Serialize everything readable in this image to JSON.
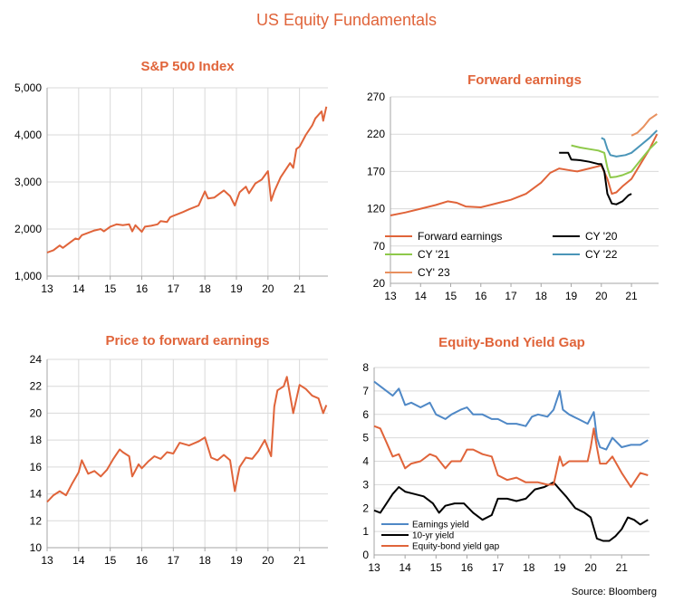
{
  "page_title": "US Equity Fundamentals",
  "source": "Source: Bloomberg",
  "colors": {
    "orange": "#e0643a",
    "black": "#000000",
    "green": "#8ec94a",
    "blue": "#4a95b8",
    "lightorange": "#e8905e",
    "steelblue": "#4f88c6"
  },
  "chart_data": [
    {
      "id": "sp500",
      "type": "line",
      "title": "S&P 500 Index",
      "x_ticks": [
        "13",
        "14",
        "15",
        "16",
        "17",
        "18",
        "19",
        "20",
        "21"
      ],
      "y_ticks": [
        "1,000",
        "2,000",
        "3,000",
        "4,000",
        "5,000"
      ],
      "xlim": [
        2013.0,
        2021.9
      ],
      "ylim": [
        1000,
        5000
      ],
      "series": [
        {
          "color": "#e0643a",
          "x": [
            2013.0,
            2013.2,
            2013.4,
            2013.5,
            2013.7,
            2013.9,
            2014.0,
            2014.1,
            2014.3,
            2014.5,
            2014.7,
            2014.8,
            2015.0,
            2015.2,
            2015.4,
            2015.6,
            2015.7,
            2015.8,
            2016.0,
            2016.1,
            2016.3,
            2016.5,
            2016.6,
            2016.8,
            2016.9,
            2017.0,
            2017.3,
            2017.5,
            2017.8,
            2018.0,
            2018.1,
            2018.3,
            2018.6,
            2018.8,
            2018.95,
            2019.1,
            2019.3,
            2019.4,
            2019.6,
            2019.8,
            2020.0,
            2020.1,
            2020.2,
            2020.4,
            2020.6,
            2020.7,
            2020.8,
            2020.9,
            2021.0,
            2021.2,
            2021.4,
            2021.5,
            2021.7,
            2021.75,
            2021.85
          ],
          "y": [
            1500,
            1550,
            1650,
            1600,
            1700,
            1800,
            1780,
            1870,
            1920,
            1970,
            2000,
            1950,
            2050,
            2100,
            2080,
            2100,
            1950,
            2080,
            1940,
            2050,
            2070,
            2100,
            2170,
            2150,
            2250,
            2280,
            2360,
            2420,
            2500,
            2800,
            2650,
            2670,
            2820,
            2700,
            2500,
            2780,
            2900,
            2760,
            2970,
            3050,
            3230,
            2600,
            2800,
            3100,
            3300,
            3400,
            3300,
            3700,
            3750,
            4000,
            4200,
            4350,
            4500,
            4300,
            4600
          ]
        }
      ]
    },
    {
      "id": "fwd",
      "type": "line",
      "title": "Forward earnings",
      "x_ticks": [
        "13",
        "14",
        "15",
        "16",
        "17",
        "18",
        "19",
        "20",
        "21"
      ],
      "y_ticks": [
        "20",
        "70",
        "120",
        "170",
        "220",
        "270"
      ],
      "xlim": [
        2013.0,
        2021.9
      ],
      "ylim": [
        20,
        270
      ],
      "legend": [
        "Forward earnings",
        "CY '20",
        "CY '21",
        "CY '22",
        "CY' 23"
      ],
      "series": [
        {
          "name": "Forward earnings",
          "color": "#e0643a",
          "x": [
            2013.0,
            2013.5,
            2014.0,
            2014.5,
            2014.9,
            2015.2,
            2015.5,
            2016.0,
            2016.3,
            2016.6,
            2017.0,
            2017.5,
            2018.0,
            2018.3,
            2018.6,
            2018.9,
            2019.2,
            2019.6,
            2020.0,
            2020.2,
            2020.35,
            2020.5,
            2020.7,
            2021.0,
            2021.3,
            2021.6,
            2021.85
          ],
          "y": [
            111,
            115,
            120,
            125,
            130,
            128,
            123,
            122,
            125,
            128,
            132,
            140,
            155,
            168,
            174,
            172,
            170,
            174,
            178,
            160,
            140,
            142,
            150,
            160,
            180,
            200,
            220
          ]
        },
        {
          "name": "CY '20",
          "color": "#000000",
          "x": [
            2018.6,
            2018.9,
            2019.0,
            2019.3,
            2019.6,
            2019.9,
            2020.0,
            2020.1,
            2020.2,
            2020.35,
            2020.5,
            2020.7,
            2020.9,
            2021.0
          ],
          "y": [
            195,
            195,
            186,
            185,
            183,
            180,
            180,
            170,
            140,
            127,
            126,
            130,
            138,
            140
          ]
        },
        {
          "name": "CY '21",
          "color": "#8ec94a",
          "x": [
            2019.0,
            2019.3,
            2019.6,
            2019.9,
            2020.1,
            2020.2,
            2020.3,
            2020.5,
            2020.7,
            2021.0,
            2021.3,
            2021.6,
            2021.85
          ],
          "y": [
            205,
            202,
            200,
            198,
            195,
            175,
            162,
            163,
            165,
            170,
            185,
            200,
            210
          ]
        },
        {
          "name": "CY '22",
          "color": "#4a95b8",
          "x": [
            2020.0,
            2020.1,
            2020.2,
            2020.3,
            2020.5,
            2020.8,
            2021.0,
            2021.3,
            2021.6,
            2021.85
          ],
          "y": [
            215,
            213,
            200,
            192,
            190,
            192,
            195,
            205,
            215,
            225
          ]
        },
        {
          "name": "CY' 23",
          "color": "#e8905e",
          "x": [
            2021.0,
            2021.2,
            2021.4,
            2021.6,
            2021.85
          ],
          "y": [
            218,
            222,
            230,
            240,
            247
          ]
        }
      ]
    },
    {
      "id": "pe",
      "type": "line",
      "title": "Price to forward earnings",
      "x_ticks": [
        "13",
        "14",
        "15",
        "16",
        "17",
        "18",
        "19",
        "20",
        "21"
      ],
      "y_ticks": [
        "10",
        "12",
        "14",
        "16",
        "18",
        "20",
        "22",
        "24"
      ],
      "xlim": [
        2013.0,
        2021.9
      ],
      "ylim": [
        10,
        24
      ],
      "series": [
        {
          "color": "#e0643a",
          "x": [
            2013.0,
            2013.2,
            2013.4,
            2013.6,
            2013.8,
            2014.0,
            2014.1,
            2014.3,
            2014.5,
            2014.7,
            2014.9,
            2015.1,
            2015.3,
            2015.4,
            2015.6,
            2015.7,
            2015.9,
            2016.0,
            2016.2,
            2016.4,
            2016.6,
            2016.8,
            2017.0,
            2017.2,
            2017.5,
            2017.8,
            2018.0,
            2018.2,
            2018.4,
            2018.6,
            2018.8,
            2018.95,
            2019.1,
            2019.3,
            2019.5,
            2019.7,
            2019.9,
            2020.1,
            2020.2,
            2020.3,
            2020.5,
            2020.6,
            2020.8,
            2021.0,
            2021.2,
            2021.4,
            2021.6,
            2021.75,
            2021.85
          ],
          "y": [
            13.4,
            13.9,
            14.2,
            13.9,
            14.8,
            15.6,
            16.5,
            15.5,
            15.7,
            15.3,
            15.8,
            16.6,
            17.3,
            17.1,
            16.8,
            15.3,
            16.2,
            15.9,
            16.4,
            16.8,
            16.6,
            17.1,
            17.0,
            17.8,
            17.6,
            17.9,
            18.2,
            16.7,
            16.5,
            16.9,
            16.5,
            14.2,
            16.0,
            16.7,
            16.6,
            17.2,
            18.0,
            16.8,
            20.5,
            21.7,
            22.0,
            22.7,
            20.0,
            22.1,
            21.8,
            21.3,
            21.1,
            20.0,
            20.6
          ]
        }
      ]
    },
    {
      "id": "gap",
      "type": "line",
      "title": "Equity-Bond Yield Gap",
      "x_ticks": [
        "13",
        "14",
        "15",
        "16",
        "17",
        "18",
        "19",
        "20",
        "21"
      ],
      "y_ticks": [
        "0",
        "1",
        "2",
        "3",
        "4",
        "5",
        "6",
        "7",
        "8"
      ],
      "xlim": [
        2013.0,
        2021.9
      ],
      "ylim": [
        0,
        8
      ],
      "legend": [
        "Earnings yield",
        "10-yr yield",
        "Equity-bond yield gap"
      ],
      "series": [
        {
          "name": "Earnings yield",
          "color": "#4f88c6",
          "x": [
            2013.0,
            2013.2,
            2013.4,
            2013.6,
            2013.8,
            2014.0,
            2014.2,
            2014.5,
            2014.8,
            2015.0,
            2015.3,
            2015.5,
            2015.8,
            2016.0,
            2016.2,
            2016.5,
            2016.8,
            2017.0,
            2017.3,
            2017.6,
            2017.9,
            2018.1,
            2018.3,
            2018.6,
            2018.8,
            2019.0,
            2019.1,
            2019.3,
            2019.6,
            2019.9,
            2020.1,
            2020.2,
            2020.3,
            2020.5,
            2020.7,
            2021.0,
            2021.3,
            2021.6,
            2021.85
          ],
          "y": [
            7.4,
            7.2,
            7.0,
            6.8,
            7.1,
            6.4,
            6.5,
            6.3,
            6.5,
            6.0,
            5.8,
            6.0,
            6.2,
            6.3,
            6.0,
            6.0,
            5.8,
            5.8,
            5.6,
            5.6,
            5.5,
            5.9,
            6.0,
            5.9,
            6.2,
            7.0,
            6.2,
            6.0,
            5.8,
            5.6,
            6.1,
            5.0,
            4.6,
            4.5,
            5.0,
            4.6,
            4.7,
            4.7,
            4.9
          ]
        },
        {
          "name": "10-yr yield",
          "color": "#000000",
          "x": [
            2013.0,
            2013.2,
            2013.4,
            2013.6,
            2013.8,
            2014.0,
            2014.3,
            2014.6,
            2014.9,
            2015.1,
            2015.3,
            2015.6,
            2015.9,
            2016.2,
            2016.5,
            2016.8,
            2017.0,
            2017.3,
            2017.6,
            2017.9,
            2018.2,
            2018.5,
            2018.8,
            2019.0,
            2019.2,
            2019.5,
            2019.8,
            2020.0,
            2020.2,
            2020.4,
            2020.6,
            2020.8,
            2021.0,
            2021.2,
            2021.4,
            2021.6,
            2021.85
          ],
          "y": [
            1.9,
            1.8,
            2.2,
            2.6,
            2.9,
            2.7,
            2.6,
            2.5,
            2.2,
            1.8,
            2.1,
            2.2,
            2.2,
            1.8,
            1.5,
            1.7,
            2.4,
            2.4,
            2.3,
            2.4,
            2.8,
            2.9,
            3.1,
            2.8,
            2.5,
            2.0,
            1.8,
            1.6,
            0.7,
            0.6,
            0.6,
            0.8,
            1.1,
            1.6,
            1.5,
            1.3,
            1.5
          ]
        },
        {
          "name": "Equity-bond yield gap",
          "color": "#e0643a",
          "x": [
            2013.0,
            2013.2,
            2013.4,
            2013.6,
            2013.8,
            2014.0,
            2014.2,
            2014.5,
            2014.8,
            2015.0,
            2015.3,
            2015.5,
            2015.8,
            2016.0,
            2016.2,
            2016.5,
            2016.8,
            2017.0,
            2017.3,
            2017.6,
            2017.9,
            2018.1,
            2018.3,
            2018.6,
            2018.8,
            2019.0,
            2019.1,
            2019.3,
            2019.6,
            2019.9,
            2020.0,
            2020.1,
            2020.2,
            2020.3,
            2020.5,
            2020.7,
            2021.0,
            2021.3,
            2021.6,
            2021.85
          ],
          "y": [
            5.5,
            5.4,
            4.8,
            4.2,
            4.3,
            3.7,
            3.9,
            4.0,
            4.3,
            4.2,
            3.7,
            4.0,
            4.0,
            4.5,
            4.5,
            4.3,
            4.2,
            3.4,
            3.2,
            3.3,
            3.1,
            3.1,
            3.1,
            3.0,
            3.0,
            4.2,
            3.8,
            4.0,
            4.0,
            4.0,
            4.6,
            5.4,
            4.6,
            3.9,
            3.9,
            4.2,
            3.5,
            2.9,
            3.5,
            3.4
          ]
        }
      ]
    }
  ]
}
